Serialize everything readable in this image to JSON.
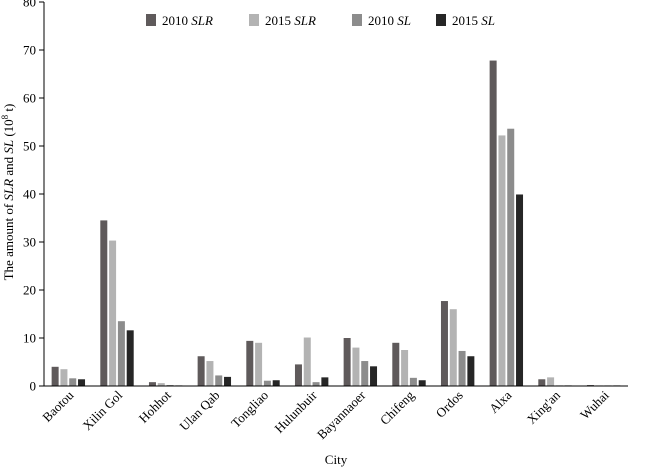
{
  "chart_data": {
    "type": "bar",
    "categories": [
      "Baotou",
      "Xilin Gol",
      "Hohhot",
      "Ulan Qab",
      "Tongliao",
      "Hulunbuir",
      "Bayannaoer",
      "Chifeng",
      "Ordos",
      "Alxa",
      "Xing'an",
      "Wuhai"
    ],
    "series": [
      {
        "name": "2010 SLR",
        "color": "#5f5a5b",
        "values": [
          4.0,
          34.5,
          0.8,
          6.2,
          9.4,
          4.5,
          10.0,
          9.0,
          17.7,
          67.8,
          1.4,
          0.2
        ]
      },
      {
        "name": "2015 SLR",
        "color": "#b3b3b3",
        "values": [
          3.5,
          30.3,
          0.6,
          5.2,
          9.0,
          10.1,
          8.0,
          7.5,
          16.0,
          52.2,
          1.8,
          0.1
        ]
      },
      {
        "name": "2010 SL",
        "color": "#8c8c8c",
        "values": [
          1.6,
          13.5,
          0.2,
          2.2,
          1.1,
          0.8,
          5.2,
          1.7,
          7.3,
          53.6,
          0.1,
          0.05
        ]
      },
      {
        "name": "2015 SL",
        "color": "#262626",
        "values": [
          1.4,
          11.6,
          0.1,
          1.9,
          1.2,
          1.8,
          4.1,
          1.2,
          6.2,
          39.9,
          0.1,
          0.05
        ]
      }
    ],
    "legend": [
      {
        "year": "2010",
        "var": "SLR"
      },
      {
        "year": "2015",
        "var": "SLR"
      },
      {
        "year": "2010",
        "var": "SL"
      },
      {
        "year": "2015",
        "var": "SL"
      }
    ],
    "legend_position": "top-center",
    "ylim": [
      0,
      80
    ],
    "yticks": [
      "0",
      "10",
      "20",
      "30",
      "40",
      "50",
      "60",
      "70",
      "80"
    ],
    "xlabel": "City",
    "ylabel": {
      "p1": "The amount of ",
      "v1": "SLR",
      "p2": " and ",
      "v2": "SL",
      "p3": " (10",
      "sup": "8",
      "p4": " t)"
    },
    "grid": false
  }
}
